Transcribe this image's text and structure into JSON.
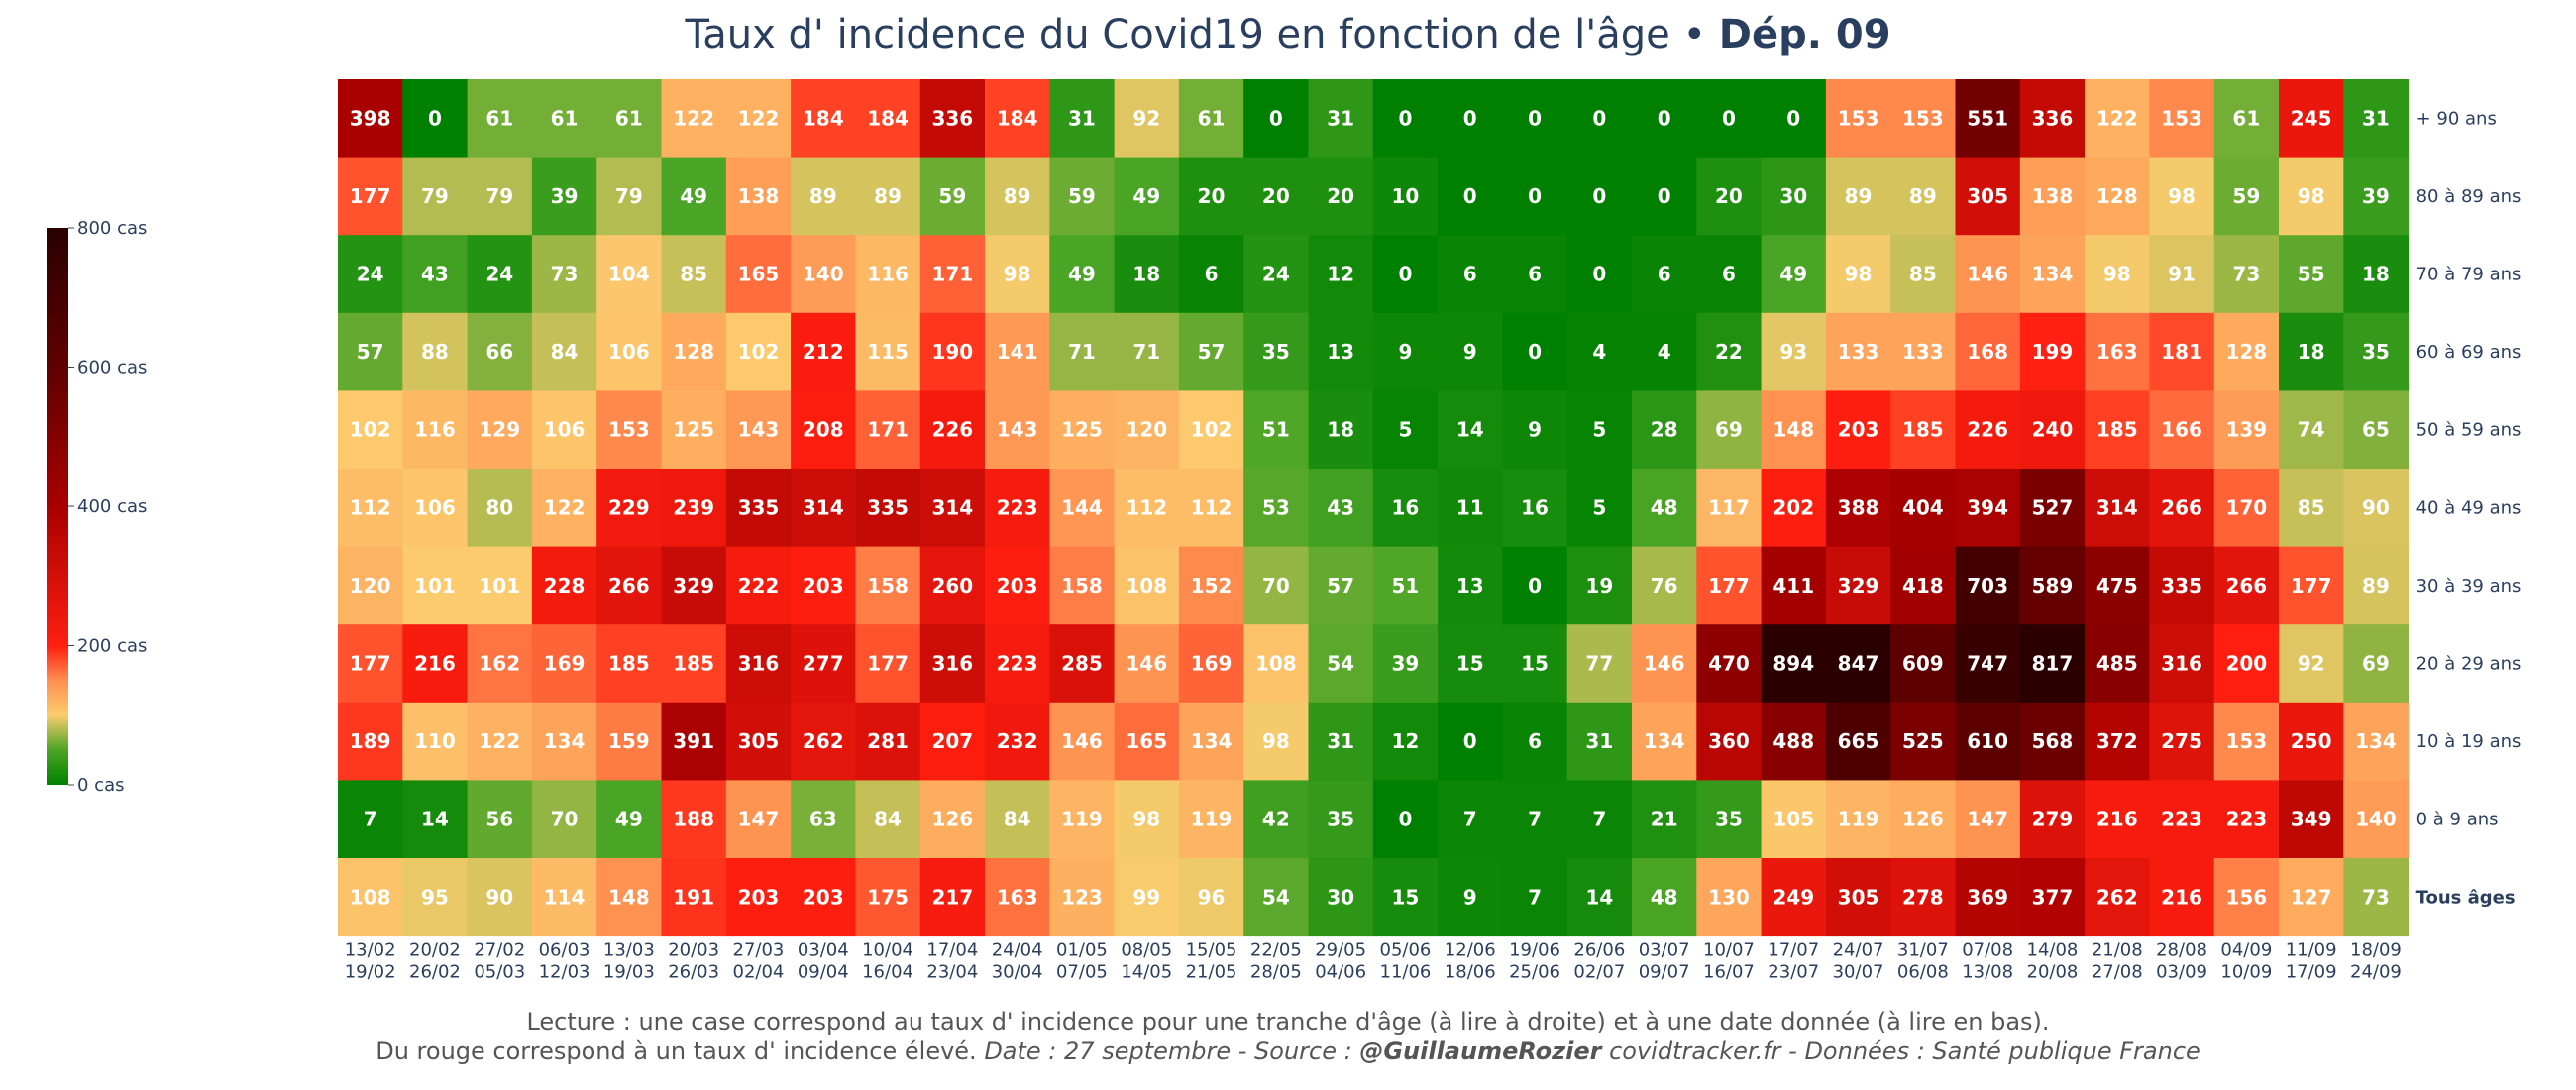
{
  "chart_data": {
    "type": "heatmap",
    "title": "Taux d' incidence du Covid19 en fonction de l'âge • ",
    "title_bold": "Dép. 09",
    "x_labels": [
      [
        "13/02",
        "19/02"
      ],
      [
        "20/02",
        "26/02"
      ],
      [
        "27/02",
        "05/03"
      ],
      [
        "06/03",
        "12/03"
      ],
      [
        "13/03",
        "19/03"
      ],
      [
        "20/03",
        "26/03"
      ],
      [
        "27/03",
        "02/04"
      ],
      [
        "03/04",
        "09/04"
      ],
      [
        "10/04",
        "16/04"
      ],
      [
        "17/04",
        "23/04"
      ],
      [
        "24/04",
        "30/04"
      ],
      [
        "01/05",
        "07/05"
      ],
      [
        "08/05",
        "14/05"
      ],
      [
        "15/05",
        "21/05"
      ],
      [
        "22/05",
        "28/05"
      ],
      [
        "29/05",
        "04/06"
      ],
      [
        "05/06",
        "11/06"
      ],
      [
        "12/06",
        "18/06"
      ],
      [
        "19/06",
        "25/06"
      ],
      [
        "26/06",
        "02/07"
      ],
      [
        "03/07",
        "09/07"
      ],
      [
        "10/07",
        "16/07"
      ],
      [
        "17/07",
        "23/07"
      ],
      [
        "24/07",
        "30/07"
      ],
      [
        "31/07",
        "06/08"
      ],
      [
        "07/08",
        "13/08"
      ],
      [
        "14/08",
        "20/08"
      ],
      [
        "21/08",
        "27/08"
      ],
      [
        "28/08",
        "03/09"
      ],
      [
        "04/09",
        "10/09"
      ],
      [
        "11/09",
        "17/09"
      ],
      [
        "18/09",
        "24/09"
      ]
    ],
    "y_labels": [
      "+ 90 ans",
      "80 à 89 ans",
      "70 à 79 ans",
      "60 à 69 ans",
      "50 à 59 ans",
      "40 à 49 ans",
      "30 à 39 ans",
      "20 à 29 ans",
      "10 à 19 ans",
      "0 à 9 ans",
      "Tous âges"
    ],
    "values": [
      [
        398,
        0,
        61,
        61,
        61,
        122,
        122,
        184,
        184,
        336,
        184,
        31,
        92,
        61,
        0,
        31,
        0,
        0,
        0,
        0,
        0,
        0,
        0,
        153,
        153,
        551,
        336,
        122,
        153,
        61,
        245,
        31
      ],
      [
        177,
        79,
        79,
        39,
        79,
        49,
        138,
        89,
        89,
        59,
        89,
        59,
        49,
        20,
        20,
        20,
        10,
        0,
        0,
        0,
        0,
        20,
        30,
        89,
        89,
        305,
        138,
        128,
        98,
        59,
        98,
        39
      ],
      [
        24,
        43,
        24,
        73,
        104,
        85,
        165,
        140,
        116,
        171,
        98,
        49,
        18,
        6,
        24,
        12,
        0,
        6,
        6,
        0,
        6,
        6,
        49,
        98,
        85,
        146,
        134,
        98,
        91,
        73,
        55,
        18
      ],
      [
        57,
        88,
        66,
        84,
        106,
        128,
        102,
        212,
        115,
        190,
        141,
        71,
        71,
        57,
        35,
        13,
        9,
        9,
        0,
        4,
        4,
        22,
        93,
        133,
        133,
        168,
        199,
        163,
        181,
        128,
        18,
        35
      ],
      [
        102,
        116,
        129,
        106,
        153,
        125,
        143,
        208,
        171,
        226,
        143,
        125,
        120,
        102,
        51,
        18,
        5,
        14,
        9,
        5,
        28,
        69,
        148,
        203,
        185,
        226,
        240,
        185,
        166,
        139,
        74,
        65
      ],
      [
        112,
        106,
        80,
        122,
        229,
        239,
        335,
        314,
        335,
        314,
        223,
        144,
        112,
        112,
        53,
        43,
        16,
        11,
        16,
        5,
        48,
        117,
        202,
        388,
        404,
        394,
        527,
        314,
        266,
        170,
        85,
        90
      ],
      [
        120,
        101,
        101,
        228,
        266,
        329,
        222,
        203,
        158,
        260,
        203,
        158,
        108,
        152,
        70,
        57,
        51,
        13,
        0,
        19,
        76,
        177,
        411,
        329,
        418,
        703,
        589,
        475,
        335,
        266,
        177,
        89
      ],
      [
        177,
        216,
        162,
        169,
        185,
        185,
        316,
        277,
        177,
        316,
        223,
        285,
        146,
        169,
        108,
        54,
        39,
        15,
        15,
        77,
        146,
        470,
        894,
        847,
        609,
        747,
        817,
        485,
        316,
        200,
        92,
        69
      ],
      [
        189,
        110,
        122,
        134,
        159,
        391,
        305,
        262,
        281,
        207,
        232,
        146,
        165,
        134,
        98,
        31,
        12,
        0,
        6,
        31,
        134,
        360,
        488,
        665,
        525,
        610,
        568,
        372,
        275,
        153,
        250,
        134
      ],
      [
        7,
        14,
        56,
        70,
        49,
        188,
        147,
        63,
        84,
        126,
        84,
        119,
        98,
        119,
        42,
        35,
        0,
        7,
        7,
        7,
        21,
        35,
        105,
        119,
        126,
        147,
        279,
        216,
        223,
        223,
        349,
        140
      ],
      [
        108,
        95,
        90,
        114,
        148,
        191,
        203,
        203,
        175,
        217,
        163,
        123,
        99,
        96,
        54,
        30,
        15,
        9,
        7,
        14,
        48,
        130,
        249,
        305,
        278,
        369,
        377,
        262,
        216,
        156,
        127,
        73
      ]
    ],
    "zmin": 0,
    "zmax": 800,
    "colorbar_ticks": [
      "0 cas",
      "200 cas",
      "400 cas",
      "600 cas",
      "800 cas"
    ],
    "colorbar_values": [
      0,
      200,
      400,
      600,
      800
    ],
    "colorscale": [
      [
        0,
        "#008000"
      ],
      [
        0.0625,
        "#4ca526"
      ],
      [
        0.125,
        "#fccc6e"
      ],
      [
        0.1875,
        "#ff8f50"
      ],
      [
        0.25,
        "#ff1e10"
      ],
      [
        0.5,
        "#a80000"
      ],
      [
        0.75,
        "#600000"
      ],
      [
        1,
        "#2a0000"
      ]
    ]
  },
  "notes": {
    "line1": "Lecture : une case correspond au taux d' incidence pour une tranche d'âge (à lire à droite) et à une date donnée (à lire en bas).",
    "line2_plain": "Du rouge correspond à un taux d' incidence élevé.  ",
    "line2_italic_a": "Date : 27 septembre - Source : ",
    "line2_bold": "@GuillaumeRozier",
    "line2_italic_b": " covidtracker.fr - Données : Santé publique France"
  }
}
